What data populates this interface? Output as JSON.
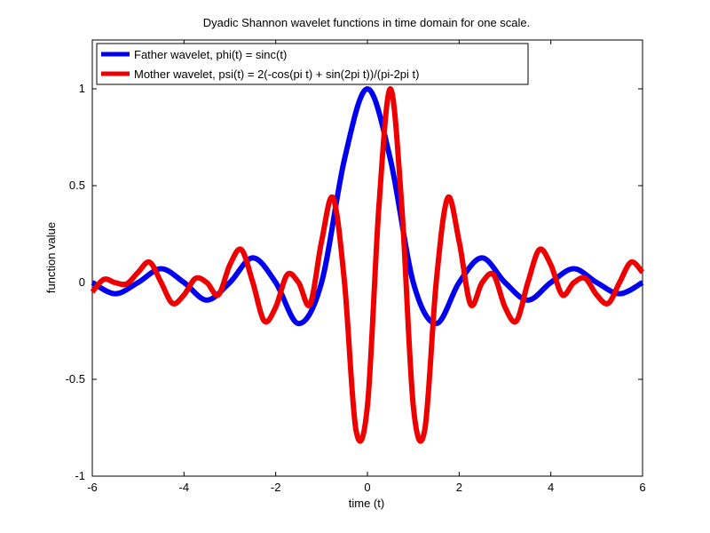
{
  "chart_data": {
    "type": "line",
    "title": "Dyadic Shannon wavelet functions in time domain for one scale.",
    "xlabel": "time (t)",
    "ylabel": "function value",
    "xlim": [
      -6,
      6
    ],
    "ylim": [
      -1,
      1.1
    ],
    "xticks": [
      -6,
      -4,
      -2,
      0,
      2,
      4,
      6
    ],
    "xtick_labels": [
      "-6",
      "-4",
      "-2",
      "0",
      "2",
      "4",
      "6"
    ],
    "yticks": [
      -1,
      -0.5,
      0,
      0.5,
      1
    ],
    "ytick_labels": [
      "-1",
      "-0.5",
      "0",
      "0.5",
      "1"
    ],
    "grid": false,
    "legend_position": "top-left",
    "series": [
      {
        "name": "Father wavelet, phi(t) = sinc(t)",
        "color": "#0000ee",
        "x": [
          -6,
          -5.5,
          -5,
          -4.5,
          -4,
          -3.5,
          -3,
          -2.5,
          -2,
          -1.5,
          -1,
          -0.5,
          0,
          0.5,
          1,
          1.5,
          2,
          2.5,
          3,
          3.5,
          4,
          4.5,
          5,
          5.5,
          6
        ],
        "values": [
          0,
          -0.058,
          0,
          0.071,
          0,
          -0.091,
          0,
          0.127,
          0,
          -0.212,
          0,
          0.637,
          1,
          0.637,
          0,
          -0.212,
          0,
          0.127,
          0,
          -0.091,
          0,
          0.071,
          0,
          -0.058,
          0
        ]
      },
      {
        "name": "Mother wavelet, psi(t) = 2(-cos(pi t) + sin(2pi t))/(pi-2pi t)",
        "color": "#ee0000",
        "x": [
          -6,
          -5.75,
          -5.5,
          -5.25,
          -5,
          -4.75,
          -4.5,
          -4.25,
          -4,
          -3.75,
          -3.5,
          -3.25,
          -3,
          -2.75,
          -2.5,
          -2.25,
          -2,
          -1.75,
          -1.5,
          -1.25,
          -1,
          -0.75,
          -0.5,
          -0.25,
          0,
          0.25,
          0.5,
          0.75,
          1,
          1.25,
          1.5,
          1.75,
          2,
          2.25,
          2.5,
          2.75,
          3,
          3.25,
          3.5,
          3.75,
          4,
          4.25,
          4.5,
          4.75,
          5,
          5.25,
          5.5,
          5.75,
          6
        ],
        "values": [
          -0.049,
          0.016,
          -0.001,
          -0.007,
          0.053,
          0.105,
          0.001,
          -0.108,
          -0.064,
          0.021,
          -0.001,
          -0.064,
          0.091,
          0.17,
          0.001,
          -0.199,
          -0.127,
          0.04,
          -0.001,
          -0.113,
          0.212,
          0.437,
          0.001,
          -0.761,
          -0.637,
          0.391,
          1.0,
          0.391,
          -0.637,
          -0.761,
          0.001,
          0.437,
          0.212,
          -0.113,
          -0.001,
          0.04,
          -0.127,
          -0.199,
          0.001,
          0.17,
          0.091,
          -0.064,
          -0.001,
          0.021,
          -0.064,
          -0.108,
          0.001,
          0.105,
          0.053
        ]
      }
    ]
  }
}
